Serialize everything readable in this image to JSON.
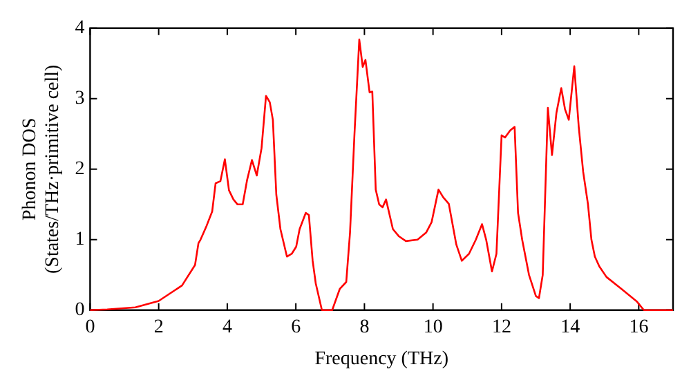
{
  "chart_data": {
    "type": "line",
    "xlabel": "Frequency (THz)",
    "ylabel": "Phonon DOS\n(States/THz·primitive cell)",
    "xlim": [
      0,
      17
    ],
    "xticks": [
      0,
      2,
      4,
      6,
      8,
      10,
      12,
      14,
      16
    ],
    "ylim": [
      0,
      4
    ],
    "yticks": [
      0,
      1,
      2,
      3,
      4
    ],
    "grid": false,
    "legend": false,
    "marker": "none",
    "line_style": "solid",
    "series": [
      {
        "color": "#ff0000",
        "x": [
          0,
          0.5,
          1.32,
          2.0,
          2.68,
          3.06,
          3.16,
          3.22,
          3.4,
          3.56,
          3.66,
          3.8,
          3.93,
          4.05,
          4.18,
          4.3,
          4.45,
          4.58,
          4.72,
          4.86,
          5.0,
          5.13,
          5.24,
          5.33,
          5.43,
          5.55,
          5.74,
          5.88,
          6.01,
          6.11,
          6.29,
          6.38,
          6.49,
          6.58,
          6.76,
          7.06,
          7.28,
          7.47,
          7.58,
          7.71,
          7.85,
          7.95,
          8.03,
          8.15,
          8.23,
          8.33,
          8.43,
          8.53,
          8.63,
          8.83,
          9.0,
          9.21,
          9.55,
          9.8,
          9.96,
          10.16,
          10.3,
          10.46,
          10.68,
          10.84,
          11.05,
          11.25,
          11.43,
          11.55,
          11.72,
          11.85,
          12.0,
          12.1,
          12.25,
          12.38,
          12.48,
          12.6,
          12.8,
          13.0,
          13.09,
          13.2,
          13.35,
          13.47,
          13.6,
          13.74,
          13.85,
          13.96,
          14.12,
          14.25,
          14.38,
          14.52,
          14.62,
          14.72,
          14.85,
          15.06,
          15.5,
          15.95,
          16.15,
          17
        ],
        "values": [
          0,
          0.01,
          0.04,
          0.13,
          0.35,
          0.64,
          0.95,
          1.0,
          1.2,
          1.4,
          1.8,
          1.83,
          2.14,
          1.7,
          1.57,
          1.5,
          1.5,
          1.85,
          2.13,
          1.91,
          2.3,
          3.04,
          2.95,
          2.7,
          1.64,
          1.15,
          0.76,
          0.8,
          0.9,
          1.15,
          1.38,
          1.35,
          0.7,
          0.38,
          0,
          0,
          0.3,
          0.4,
          1.1,
          2.5,
          3.84,
          3.45,
          3.55,
          3.09,
          3.1,
          1.71,
          1.5,
          1.46,
          1.57,
          1.15,
          1.05,
          0.98,
          1.0,
          1.1,
          1.25,
          1.71,
          1.6,
          1.51,
          0.93,
          0.7,
          0.8,
          1.0,
          1.22,
          1.0,
          0.55,
          0.8,
          2.48,
          2.45,
          2.55,
          2.6,
          1.38,
          1.0,
          0.5,
          0.2,
          0.17,
          0.5,
          2.87,
          2.2,
          2.8,
          3.15,
          2.85,
          2.7,
          3.46,
          2.6,
          1.96,
          1.5,
          1.0,
          0.76,
          0.62,
          0.47,
          0.3,
          0.12,
          0,
          0
        ]
      }
    ]
  }
}
